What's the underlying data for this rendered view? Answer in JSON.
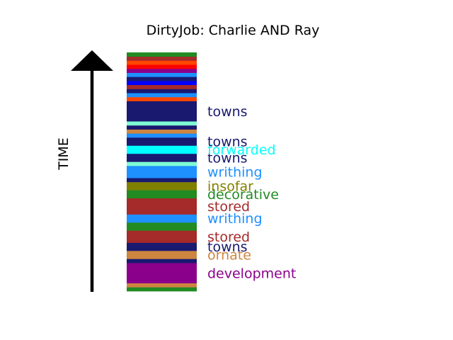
{
  "chart_data": {
    "type": "bar",
    "title": "DirtyJob: Charlie AND Ray",
    "ylabel": "TIME",
    "orientation": "vertical-stacked-timeline",
    "colors": {
      "navy": "#191970",
      "cyan": "#00ffff",
      "dodgerblue": "#1e90ff",
      "olive": "#808000",
      "forestgreen": "#228b22",
      "brown": "#a52a2a",
      "peru": "#cd853f",
      "purple": "#8b008b",
      "aquamarine": "#7fffd4",
      "blue": "#0000ff",
      "orangered": "#ff4500",
      "red": "#ff0000"
    },
    "segments": [
      {
        "color": "#228b22",
        "weight": 1
      },
      {
        "color": "#cd853f",
        "weight": 1
      },
      {
        "color": "#8b008b",
        "weight": 5,
        "label": "development"
      },
      {
        "color": "#191970",
        "weight": 1
      },
      {
        "color": "#cd853f",
        "weight": 2,
        "label": "ornate"
      },
      {
        "color": "#191970",
        "weight": 2,
        "label": "towns"
      },
      {
        "color": "#a52a2a",
        "weight": 3,
        "label": "stored"
      },
      {
        "color": "#228b22",
        "weight": 2
      },
      {
        "color": "#1e90ff",
        "weight": 2,
        "label": "writhing"
      },
      {
        "color": "#a52a2a",
        "weight": 4,
        "label": "stored"
      },
      {
        "color": "#228b22",
        "weight": 2,
        "label": "decorative"
      },
      {
        "color": "#808000",
        "weight": 2,
        "label": "insofar"
      },
      {
        "color": "#191970",
        "weight": 1
      },
      {
        "color": "#1e90ff",
        "weight": 3,
        "label": "writhing"
      },
      {
        "color": "#7fffd4",
        "weight": 1
      },
      {
        "color": "#191970",
        "weight": 2,
        "label": "towns"
      },
      {
        "color": "#00ffff",
        "weight": 2,
        "label": "forwarded"
      },
      {
        "color": "#191970",
        "weight": 2,
        "label": "towns"
      },
      {
        "color": "#1e90ff",
        "weight": 1
      },
      {
        "color": "#cd853f",
        "weight": 1
      },
      {
        "color": "#191970",
        "weight": 1
      },
      {
        "color": "#7fffd4",
        "weight": 1
      },
      {
        "color": "#191970",
        "weight": 5,
        "label": "towns"
      },
      {
        "color": "#ff4500",
        "weight": 1
      },
      {
        "color": "#1e90ff",
        "weight": 1
      },
      {
        "color": "#191970",
        "weight": 1
      },
      {
        "color": "#a52a2a",
        "weight": 1
      },
      {
        "color": "#0000ff",
        "weight": 1
      },
      {
        "color": "#191970",
        "weight": 1
      },
      {
        "color": "#1e90ff",
        "weight": 1
      },
      {
        "color": "#8b008b",
        "weight": 1
      },
      {
        "color": "#ff0000",
        "weight": 1
      },
      {
        "color": "#ff4500",
        "weight": 1
      },
      {
        "color": "#a52a2a",
        "weight": 1
      },
      {
        "color": "#228b22",
        "weight": 1
      }
    ]
  }
}
